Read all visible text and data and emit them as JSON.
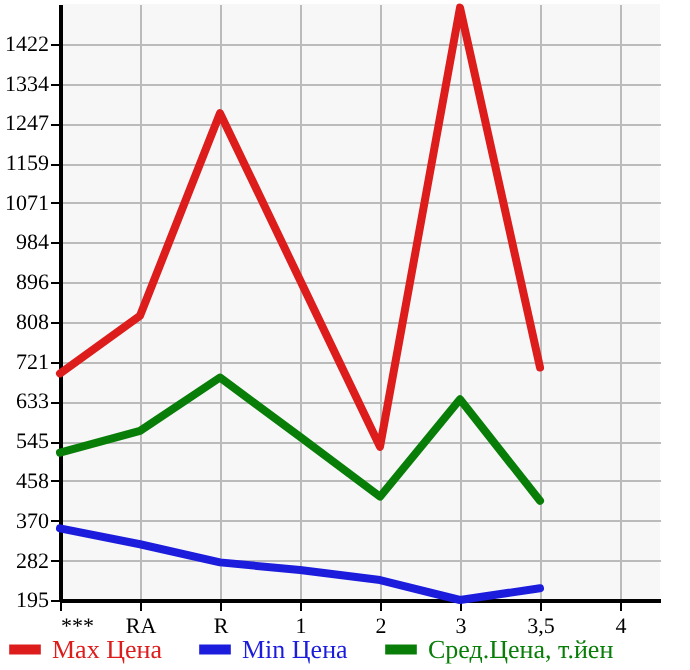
{
  "chart_data": {
    "type": "line",
    "categories": [
      "***",
      "RA",
      "R",
      "1",
      "2",
      "3",
      "3,5",
      "4"
    ],
    "series": [
      {
        "name": "Max Цена",
        "color": "#dd1c1c",
        "values": [
          695,
          822,
          1269,
          901,
          533,
          1502,
          708,
          null
        ]
      },
      {
        "name": "Min Цена",
        "color": "#1c1cdd",
        "values": [
          353,
          318,
          278,
          261,
          239,
          195,
          221,
          null
        ]
      },
      {
        "name": "Сред.Цена, т.йен",
        "color": "#087e08",
        "values": [
          520,
          568,
          686,
          555,
          423,
          638,
          414,
          null
        ]
      }
    ],
    "ylim": [
      195,
      1510
    ],
    "yticks": [
      195,
      282,
      370,
      458,
      545,
      633,
      721,
      808,
      896,
      984,
      1071,
      1159,
      1247,
      1334,
      1422
    ],
    "grid": true,
    "legend": "bottom"
  }
}
